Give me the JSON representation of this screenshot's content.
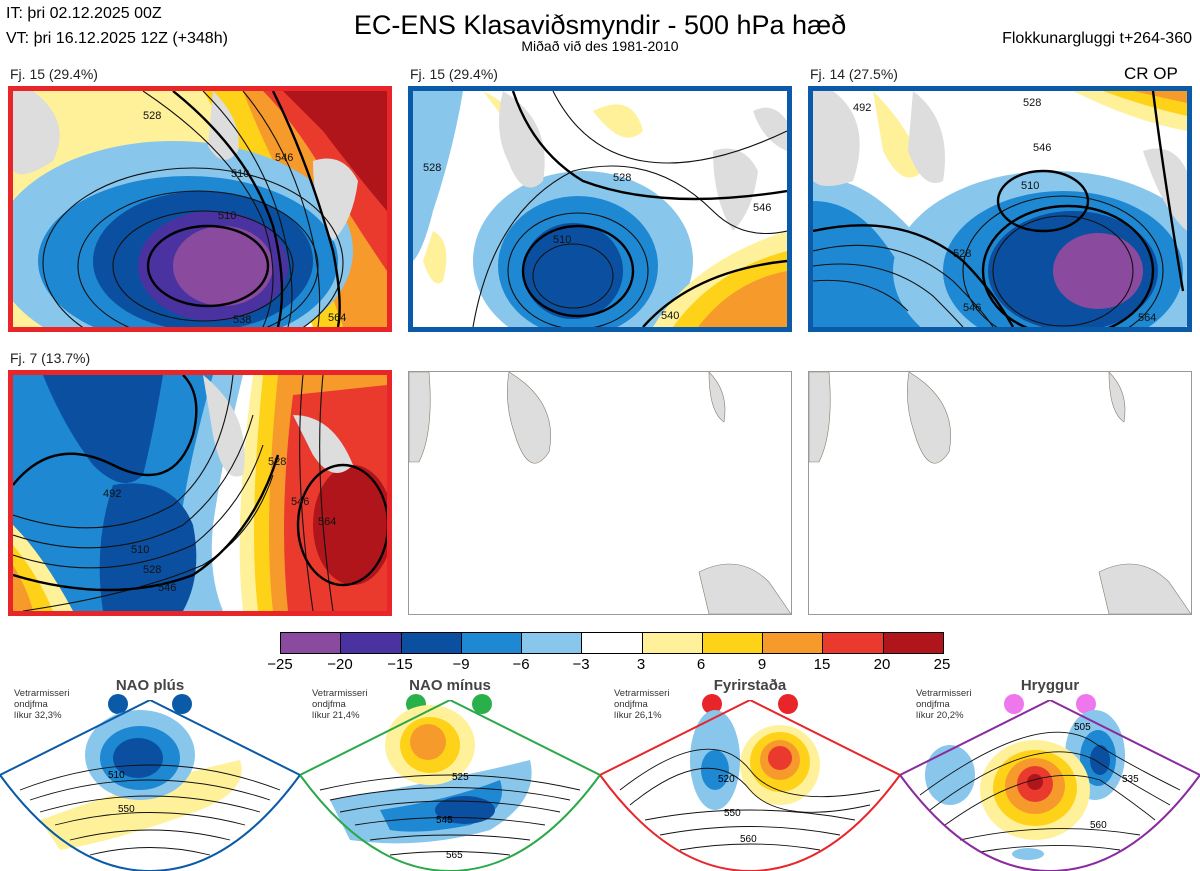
{
  "header": {
    "it": "IT: þri 02.12.2025 00Z",
    "vt": "VT: þri 16.12.2025 12Z  (+348h)",
    "title": "EC-ENS Klasaviðsmyndir - 500 hPa hæð",
    "subtitle": "Miðað við des 1981-2010",
    "window": "Flokkunargluggi t+264-360"
  },
  "panels": [
    {
      "label": "Fj. 15 (29.4%)",
      "frame_color": "#e8262a",
      "regime": "Fyrirstaða",
      "contours": [
        "510",
        "528",
        "546",
        "564",
        "538",
        "510"
      ]
    },
    {
      "label": "Fj. 15 (29.4%)",
      "frame_color": "#0a5aa8",
      "regime": "NAO plús",
      "contours": [
        "528",
        "510",
        "540",
        "528",
        "546"
      ]
    },
    {
      "label": "Fj. 14 (27.5%)",
      "frame_color": "#0a5aa8",
      "regime": "NAO plús",
      "tag": "CR OP",
      "contours": [
        "492",
        "528",
        "546",
        "510",
        "528",
        "546",
        "564"
      ]
    },
    {
      "label": "Fj. 7 (13.7%)",
      "frame_color": "#e8262a",
      "regime": "Fyrirstaða",
      "contours": [
        "492",
        "510",
        "528",
        "546",
        "528",
        "546",
        "564"
      ]
    },
    {
      "label": "",
      "frame_color": "none",
      "empty": true
    },
    {
      "label": "",
      "frame_color": "none",
      "empty": true
    }
  ],
  "colorbar": {
    "ticks": [
      "−25",
      "−20",
      "−15",
      "−9",
      "−6",
      "−3",
      "3",
      "6",
      "9",
      "15",
      "20",
      "25"
    ],
    "colors": [
      "#8a4a9e",
      "#4a33a0",
      "#0a4fa0",
      "#1e88d2",
      "#88c6ec",
      "#ffffff",
      "#fff19a",
      "#ffd21a",
      "#f79a2c",
      "#ea3a2e",
      "#b0151b"
    ]
  },
  "regimes": [
    {
      "name": "NAO plús",
      "note": "Vetrarmisseri\nondjfma\nlíkur 32,3%",
      "color": "#0a5aa8",
      "dot_color": "#0a5aa8",
      "contours": [
        "510",
        "550"
      ]
    },
    {
      "name": "NAO mínus",
      "note": "Vetrarmisseri\nondjfma\nlíkur 21,4%",
      "color": "#2aa84a",
      "dot_color": "#2ab04a",
      "contours": [
        "525",
        "545",
        "565"
      ]
    },
    {
      "name": "Fyrirstaða",
      "note": "Vetrarmisseri\nondjfma\nlíkur 26,1%",
      "color": "#e8262a",
      "dot_color": "#e8262a",
      "contours": [
        "520",
        "550",
        "560"
      ]
    },
    {
      "name": "Hryggur",
      "note": "Vetrarmisseri\nondjfma\nlíkur 20,2%",
      "color": "#8a2a9e",
      "dot_color": "#ee77ee",
      "contours": [
        "505",
        "535",
        "560"
      ]
    }
  ]
}
